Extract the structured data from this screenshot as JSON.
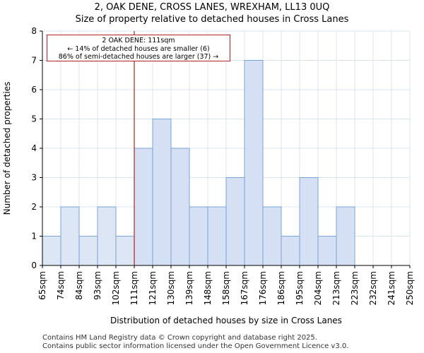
{
  "chart_data": {
    "type": "histogram",
    "title": "2, OAK DENE, CROSS LANES, WREXHAM, LL13 0UQ",
    "subtitle": "Size of property relative to detached houses in Cross Lanes",
    "xlabel": "Distribution of detached houses by size in Cross Lanes",
    "ylabel": "Number of detached properties",
    "categories": [
      "65sqm",
      "74sqm",
      "84sqm",
      "93sqm",
      "102sqm",
      "111sqm",
      "121sqm",
      "130sqm",
      "139sqm",
      "148sqm",
      "158sqm",
      "167sqm",
      "176sqm",
      "186sqm",
      "195sqm",
      "204sqm",
      "213sqm",
      "223sqm",
      "232sqm",
      "241sqm",
      "250sqm"
    ],
    "values": [
      1,
      2,
      1,
      2,
      1,
      4,
      5,
      4,
      2,
      2,
      3,
      7,
      2,
      1,
      3,
      1,
      2,
      0,
      0,
      0
    ],
    "ylim": [
      0,
      8
    ],
    "yticks": [
      0,
      1,
      2,
      3,
      4,
      5,
      6,
      7,
      8
    ],
    "marker_bin_index": 5,
    "marker_color": "#b22222",
    "bar_fill_before": "#dce6f4",
    "bar_fill_after": "#d6e0f4",
    "bar_stroke": "#7aa3d6",
    "grid_color": "#d9e4f2",
    "annotation": {
      "line1": "2 OAK DENE: 111sqm",
      "line2": "← 14% of detached houses are smaller (6)",
      "line3": "86% of semi-detached houses are larger (37) →"
    }
  },
  "footer": {
    "line1": "Contains HM Land Registry data © Crown copyright and database right 2025.",
    "line2": "Contains public sector information licensed under the Open Government Licence v3.0."
  }
}
